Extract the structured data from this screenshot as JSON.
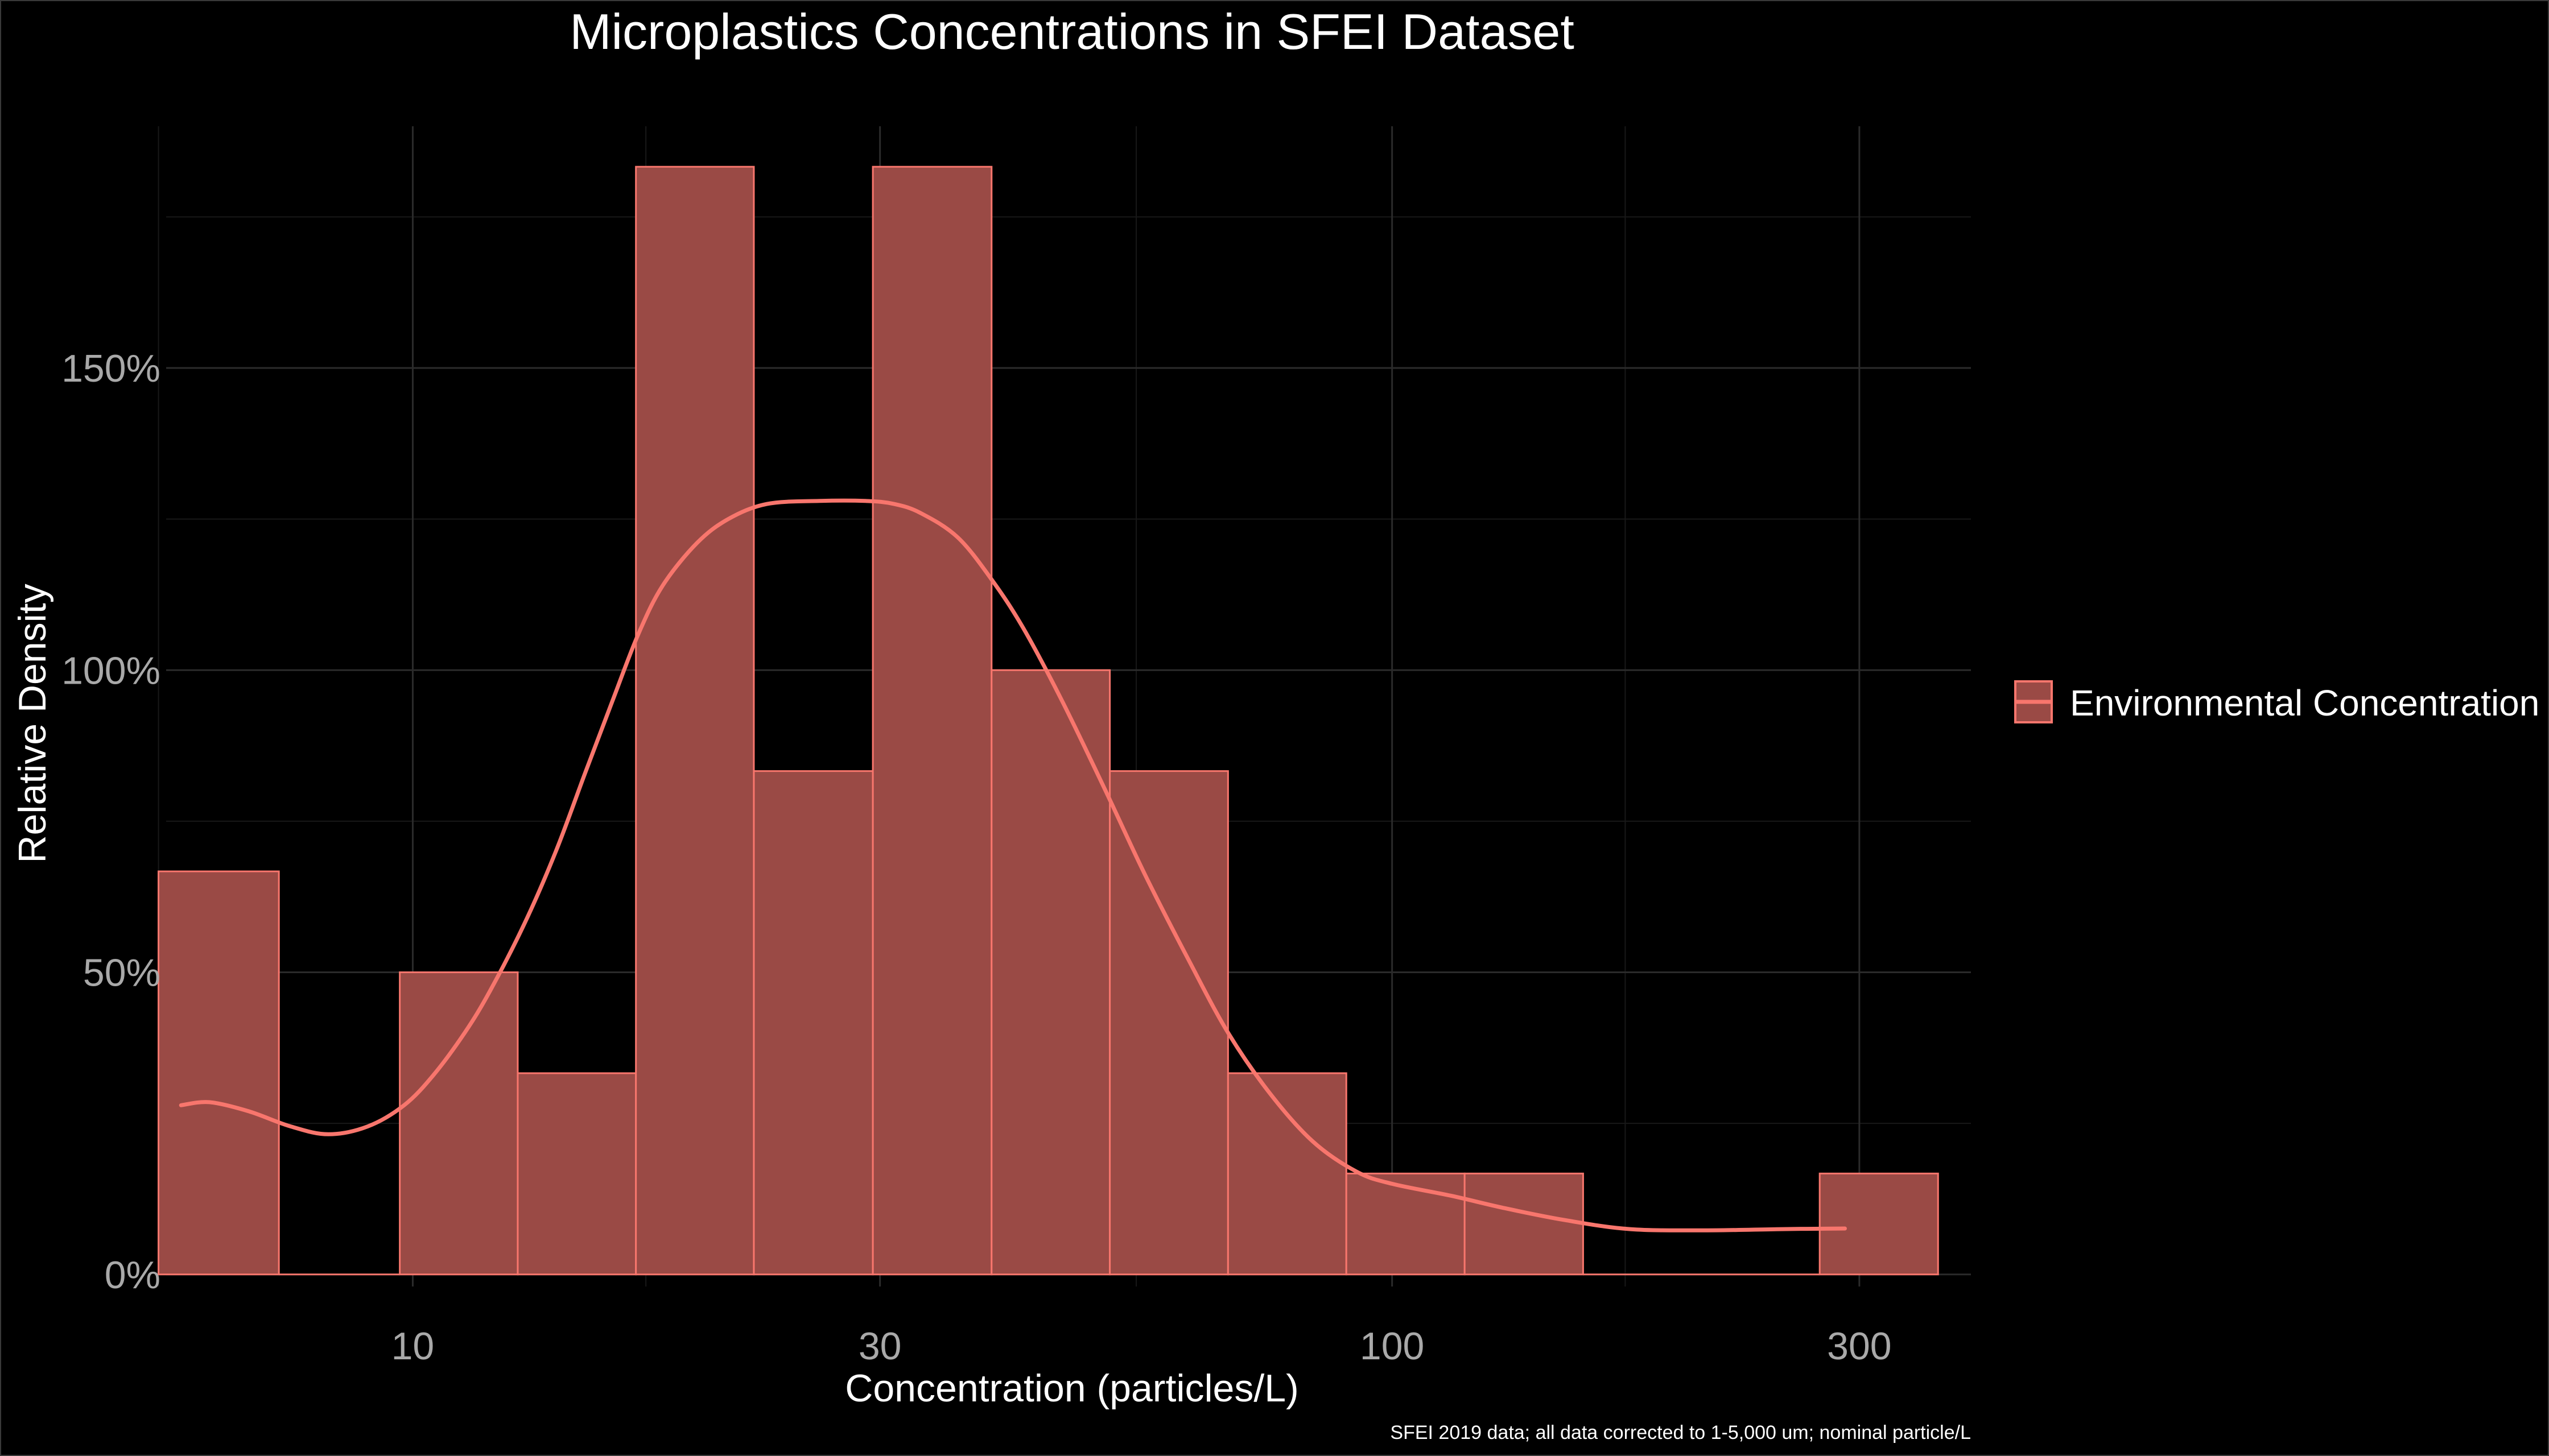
{
  "chart_data": {
    "type": "bar",
    "title": "Microplastics Concentrations in SFEI Dataset",
    "xlabel": "Concentration (particles/L)",
    "ylabel": "Relative Density",
    "caption": "SFEI 2019 data; all data corrected to 1-5,000 um; nominal particle/L",
    "x_scale": "log10",
    "xlim": [
      5.6,
      390
    ],
    "ylim": [
      -0.02,
      1.9
    ],
    "x_ticks": [
      {
        "value": 10,
        "label": "10"
      },
      {
        "value": 30,
        "label": "30"
      },
      {
        "value": 100,
        "label": "100"
      },
      {
        "value": 300,
        "label": "300"
      }
    ],
    "x_minor_ticks": [
      5.5,
      17.3,
      54.8,
      173
    ],
    "y_ticks": [
      {
        "value": 0,
        "label": "0%"
      },
      {
        "value": 0.5,
        "label": "50%"
      },
      {
        "value": 1.0,
        "label": "100%"
      },
      {
        "value": 1.5,
        "label": "150%"
      }
    ],
    "y_minor_ticks": [
      0.25,
      0.75,
      1.25,
      1.75
    ],
    "grid": true,
    "legend": {
      "position": "right",
      "entries": [
        "Environmental Concentration"
      ]
    },
    "colors": {
      "background": "#000000",
      "bar_fill": "#9a4a45",
      "bar_stroke": "#f8766d",
      "density_line": "#f8766d",
      "text": "#ffffff",
      "tick_text": "#a9a9a9"
    },
    "series": [
      {
        "type": "histogram",
        "bins": [
          {
            "x0": 5.5,
            "x1": 7.3,
            "value": 0.667
          },
          {
            "x0": 7.3,
            "x1": 9.7,
            "value": 0
          },
          {
            "x0": 9.7,
            "x1": 12.8,
            "value": 0.5
          },
          {
            "x0": 12.8,
            "x1": 16.9,
            "value": 0.333
          },
          {
            "x0": 16.9,
            "x1": 22.3,
            "value": 1.833
          },
          {
            "x0": 22.3,
            "x1": 29.5,
            "value": 0.833
          },
          {
            "x0": 29.5,
            "x1": 39.0,
            "value": 1.833
          },
          {
            "x0": 39.0,
            "x1": 51.5,
            "value": 1.0
          },
          {
            "x0": 51.5,
            "x1": 68.0,
            "value": 0.833
          },
          {
            "x0": 68.0,
            "x1": 89.8,
            "value": 0.333
          },
          {
            "x0": 89.8,
            "x1": 118.6,
            "value": 0.167
          },
          {
            "x0": 118.6,
            "x1": 156.7,
            "value": 0.167
          },
          {
            "x0": 156.7,
            "x1": 207.0,
            "value": 0
          },
          {
            "x0": 207.0,
            "x1": 273.3,
            "value": 0
          },
          {
            "x0": 273.3,
            "x1": 361.0,
            "value": 0.167
          }
        ]
      },
      {
        "type": "line",
        "points": [
          [
            5.8,
            0.28
          ],
          [
            6.2,
            0.285
          ],
          [
            6.8,
            0.27
          ],
          [
            7.5,
            0.245
          ],
          [
            8.2,
            0.232
          ],
          [
            9.0,
            0.245
          ],
          [
            9.8,
            0.28
          ],
          [
            10.5,
            0.33
          ],
          [
            11.3,
            0.4
          ],
          [
            12.0,
            0.47
          ],
          [
            13.0,
            0.58
          ],
          [
            14.0,
            0.7
          ],
          [
            15.0,
            0.83
          ],
          [
            16.0,
            0.95
          ],
          [
            17.0,
            1.06
          ],
          [
            18.0,
            1.14
          ],
          [
            19.5,
            1.21
          ],
          [
            21.0,
            1.25
          ],
          [
            23.0,
            1.275
          ],
          [
            26.0,
            1.28
          ],
          [
            29.0,
            1.28
          ],
          [
            31.0,
            1.275
          ],
          [
            33.0,
            1.26
          ],
          [
            36.0,
            1.22
          ],
          [
            39.0,
            1.15
          ],
          [
            42.0,
            1.07
          ],
          [
            46.0,
            0.95
          ],
          [
            51.0,
            0.8
          ],
          [
            56.0,
            0.66
          ],
          [
            62.0,
            0.52
          ],
          [
            68.0,
            0.4
          ],
          [
            75.0,
            0.3
          ],
          [
            83.0,
            0.22
          ],
          [
            92.0,
            0.17
          ],
          [
            100.0,
            0.15
          ],
          [
            115.0,
            0.13
          ],
          [
            130.0,
            0.11
          ],
          [
            150.0,
            0.09
          ],
          [
            175.0,
            0.075
          ],
          [
            210.0,
            0.073
          ],
          [
            250.0,
            0.075
          ],
          [
            290.0,
            0.076
          ]
        ]
      }
    ]
  }
}
